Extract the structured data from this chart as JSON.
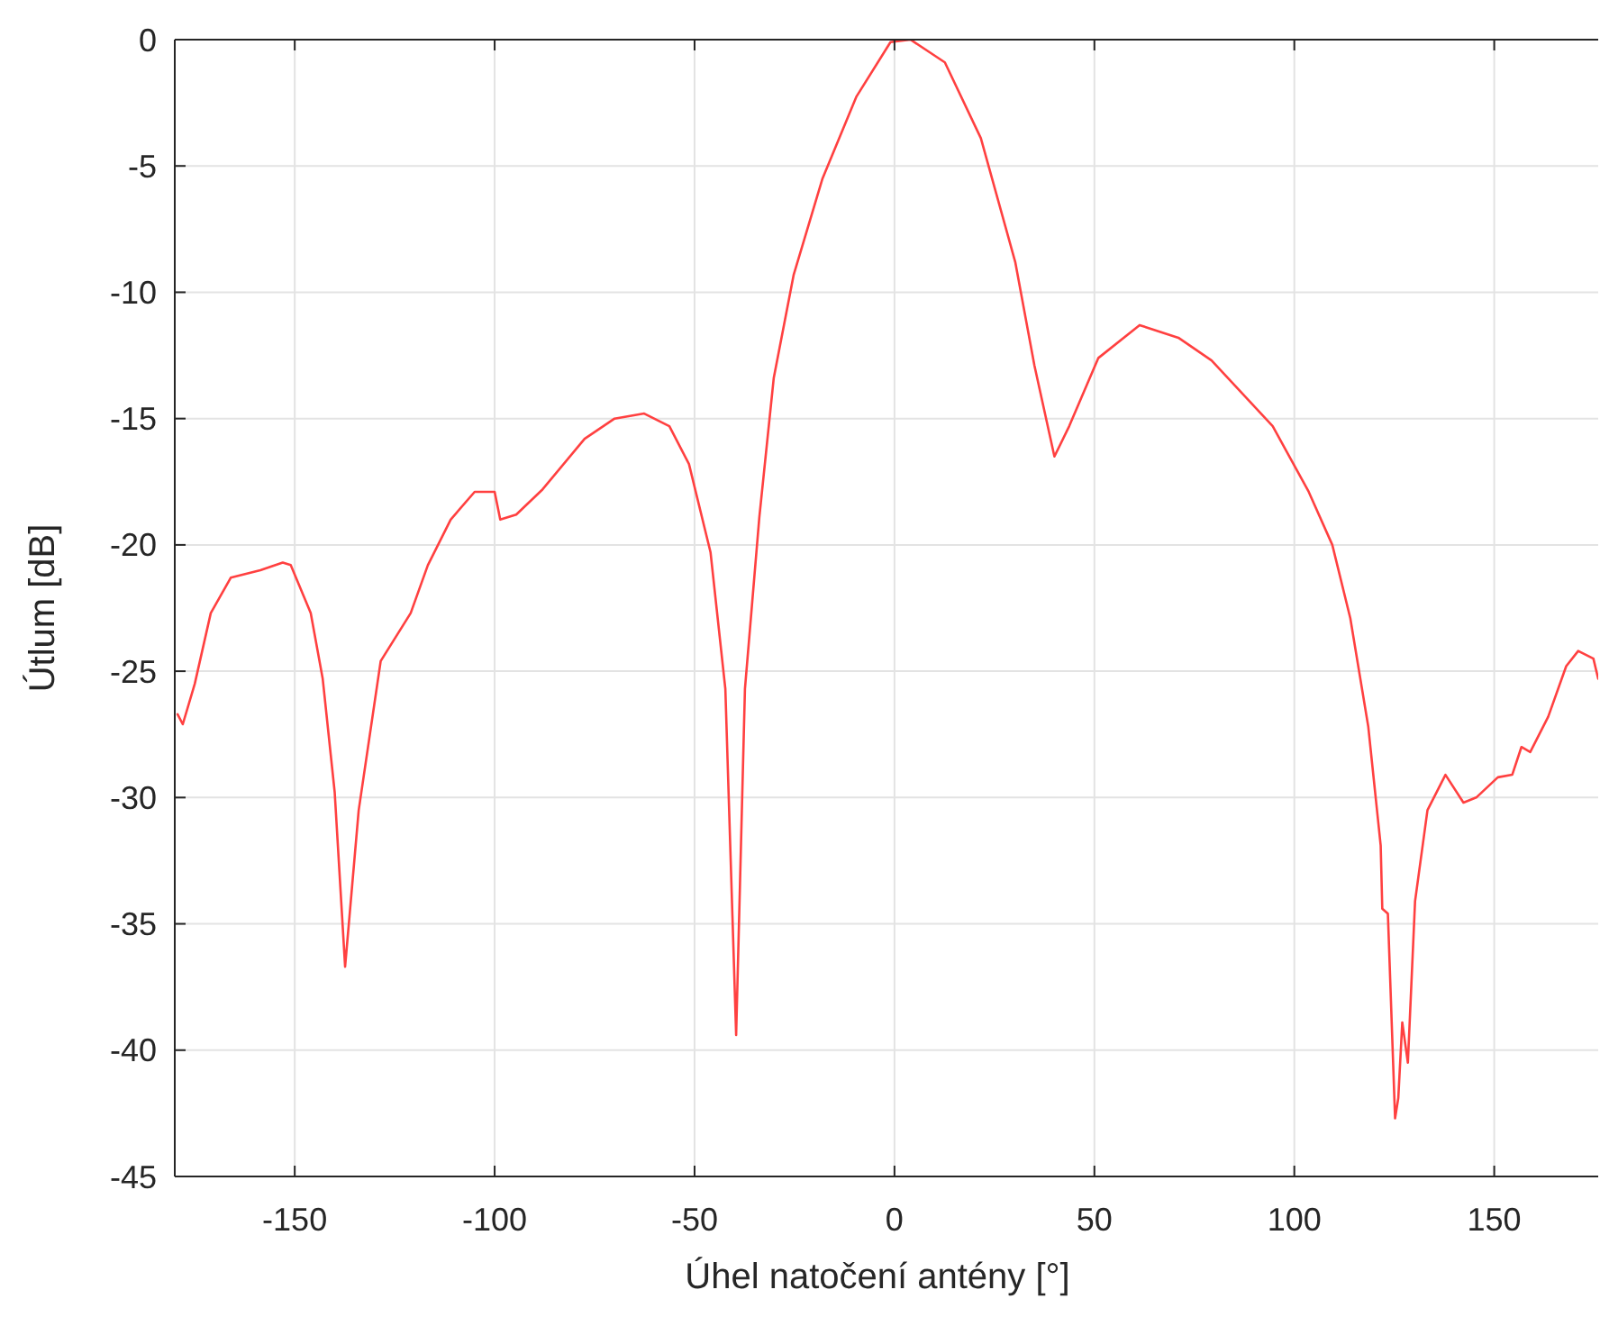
{
  "chart_data": {
    "type": "line",
    "xlabel": "Úhel natočení antény [°]",
    "ylabel": "Útlum [dB]",
    "xlim": [
      -180,
      176
    ],
    "ylim": [
      -45,
      0
    ],
    "xticks": [
      -150,
      -100,
      -50,
      0,
      50,
      100,
      150
    ],
    "yticks": [
      -45,
      -40,
      -35,
      -30,
      -25,
      -20,
      -15,
      -10,
      -5,
      0
    ],
    "grid": true,
    "line_style": "solid",
    "marker": "none",
    "series": [
      {
        "color": "#ff4040",
        "x": [
          -179.3,
          -178,
          -175,
          -171,
          -166,
          -158.6,
          -153,
          -151,
          -146,
          -143,
          -140,
          -137.4,
          -134,
          -128.5,
          -121,
          -116.7,
          -111,
          -105,
          -100,
          -98.6,
          -94.6,
          -88,
          -77.5,
          -70,
          -62.6,
          -56.3,
          -51.4,
          -46,
          -42.3,
          -39.6,
          -37.4,
          -33.8,
          -30.2,
          -25.2,
          -18,
          -9.5,
          -1,
          4,
          12.6,
          21.6,
          30.2,
          35,
          40,
          43.7,
          51,
          61.3,
          71,
          79.3,
          94.6,
          103.6,
          109.5,
          114,
          118.5,
          121.6,
          122,
          123.4,
          125.2,
          126,
          127,
          128.4,
          130.2,
          133.3,
          137.8,
          142.3,
          145.5,
          150.9,
          154.5,
          156.8,
          159,
          163.5,
          168,
          171,
          174.8,
          176
        ],
        "values": [
          -26.7,
          -27.1,
          -25.5,
          -22.7,
          -21.3,
          -21,
          -20.7,
          -20.8,
          -22.7,
          -25.3,
          -29.8,
          -36.7,
          -30.5,
          -24.6,
          -22.7,
          -20.8,
          -19,
          -17.9,
          -17.9,
          -19,
          -18.8,
          -17.8,
          -15.8,
          -15,
          -14.8,
          -15.3,
          -16.8,
          -20.3,
          -25.7,
          -39.4,
          -25.7,
          -18.9,
          -13.4,
          -9.3,
          -5.5,
          -2.25,
          -0.1,
          0,
          -0.9,
          -3.9,
          -8.8,
          -12.9,
          -16.5,
          -15.3,
          -12.6,
          -11.3,
          -11.8,
          -12.7,
          -15.3,
          -17.9,
          -20,
          -22.9,
          -27.2,
          -31.9,
          -34.4,
          -34.6,
          -42.7,
          -41.9,
          -38.9,
          -40.5,
          -34.1,
          -30.5,
          -29.1,
          -30.2,
          -30,
          -29.2,
          -29.1,
          -28,
          -28.2,
          -26.8,
          -24.8,
          -24.2,
          -24.5,
          -25.3
        ]
      }
    ]
  }
}
